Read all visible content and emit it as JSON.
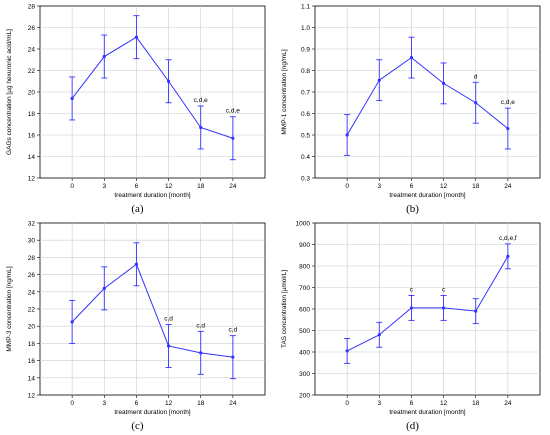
{
  "chart_data": [
    {
      "type": "line",
      "caption": "(a)",
      "ylabel": "GAGs concentration [µg hexuronic acid/mL]",
      "xlabel": "treatment duration [month]",
      "categories": [
        "0",
        "3",
        "6",
        "12",
        "18",
        "24"
      ],
      "ylim": [
        12,
        28
      ],
      "yticks": [
        "12",
        "14",
        "16",
        "18",
        "20",
        "22",
        "24",
        "26",
        "28"
      ],
      "ytick_values": [
        12,
        14,
        16,
        18,
        20,
        22,
        24,
        26,
        28
      ],
      "series": [
        {
          "values": [
            19.4,
            23.3,
            25.1,
            21.0,
            16.7,
            15.7
          ],
          "errors": [
            2.0,
            2.0,
            2.0,
            2.0,
            2.0,
            2.0
          ]
        }
      ],
      "annotations": [
        {
          "index": 4,
          "text": "c,d,e"
        },
        {
          "index": 5,
          "text": "c,d,e"
        }
      ],
      "grid": true,
      "color": "#3333ff"
    },
    {
      "type": "line",
      "caption": "(b)",
      "ylabel": "MMP-1 concentration [ng/mL]",
      "xlabel": "treatment duration [month]",
      "categories": [
        "0",
        "3",
        "6",
        "12",
        "18",
        "24"
      ],
      "ylim": [
        0.3,
        1.1
      ],
      "yticks": [
        "0.3",
        "0.4",
        "0.5",
        "0.6",
        "0.7",
        "0.8",
        "0.9",
        "1.0",
        "1.1"
      ],
      "ytick_values": [
        0.3,
        0.4,
        0.5,
        0.6,
        0.7,
        0.8,
        0.9,
        1.0,
        1.1
      ],
      "series": [
        {
          "values": [
            0.5,
            0.755,
            0.86,
            0.74,
            0.65,
            0.53
          ],
          "errors": [
            0.095,
            0.095,
            0.095,
            0.095,
            0.095,
            0.095
          ]
        }
      ],
      "annotations": [
        {
          "index": 4,
          "text": "d"
        },
        {
          "index": 5,
          "text": "c,d,e"
        }
      ],
      "grid": true,
      "color": "#3333ff"
    },
    {
      "type": "line",
      "caption": "(c)",
      "ylabel": "MMP-3 concentration [ng/mL]",
      "xlabel": "treatment duration [month]",
      "categories": [
        "0",
        "3",
        "6",
        "12",
        "18",
        "24"
      ],
      "ylim": [
        12,
        32
      ],
      "yticks": [
        "12",
        "14",
        "16",
        "18",
        "20",
        "22",
        "24",
        "26",
        "28",
        "30",
        "32"
      ],
      "ytick_values": [
        12,
        14,
        16,
        18,
        20,
        22,
        24,
        26,
        28,
        30,
        32
      ],
      "series": [
        {
          "values": [
            20.5,
            24.4,
            27.2,
            17.7,
            16.9,
            16.4
          ],
          "errors": [
            2.5,
            2.5,
            2.5,
            2.5,
            2.5,
            2.5
          ]
        }
      ],
      "annotations": [
        {
          "index": 3,
          "text": "c,d"
        },
        {
          "index": 4,
          "text": "c,d"
        },
        {
          "index": 5,
          "text": "c,d"
        }
      ],
      "grid": true,
      "color": "#3333ff"
    },
    {
      "type": "line",
      "caption": "(d)",
      "ylabel": "TAS concentration [µmol/L]",
      "xlabel": "treatment duration [month]",
      "categories": [
        "0",
        "3",
        "6",
        "12",
        "18",
        "24"
      ],
      "ylim": [
        200,
        1000
      ],
      "yticks": [
        "200",
        "300",
        "400",
        "500",
        "600",
        "700",
        "800",
        "900",
        "1000"
      ],
      "ytick_values": [
        200,
        300,
        400,
        500,
        600,
        700,
        800,
        900,
        1000
      ],
      "series": [
        {
          "values": [
            405,
            480,
            605,
            605,
            590,
            845
          ],
          "errors": [
            58,
            58,
            58,
            58,
            58,
            58
          ]
        }
      ],
      "annotations": [
        {
          "index": 2,
          "text": "c"
        },
        {
          "index": 3,
          "text": "c"
        },
        {
          "index": 5,
          "text": "c,d,e,f"
        }
      ],
      "grid": true,
      "color": "#3333ff"
    }
  ]
}
